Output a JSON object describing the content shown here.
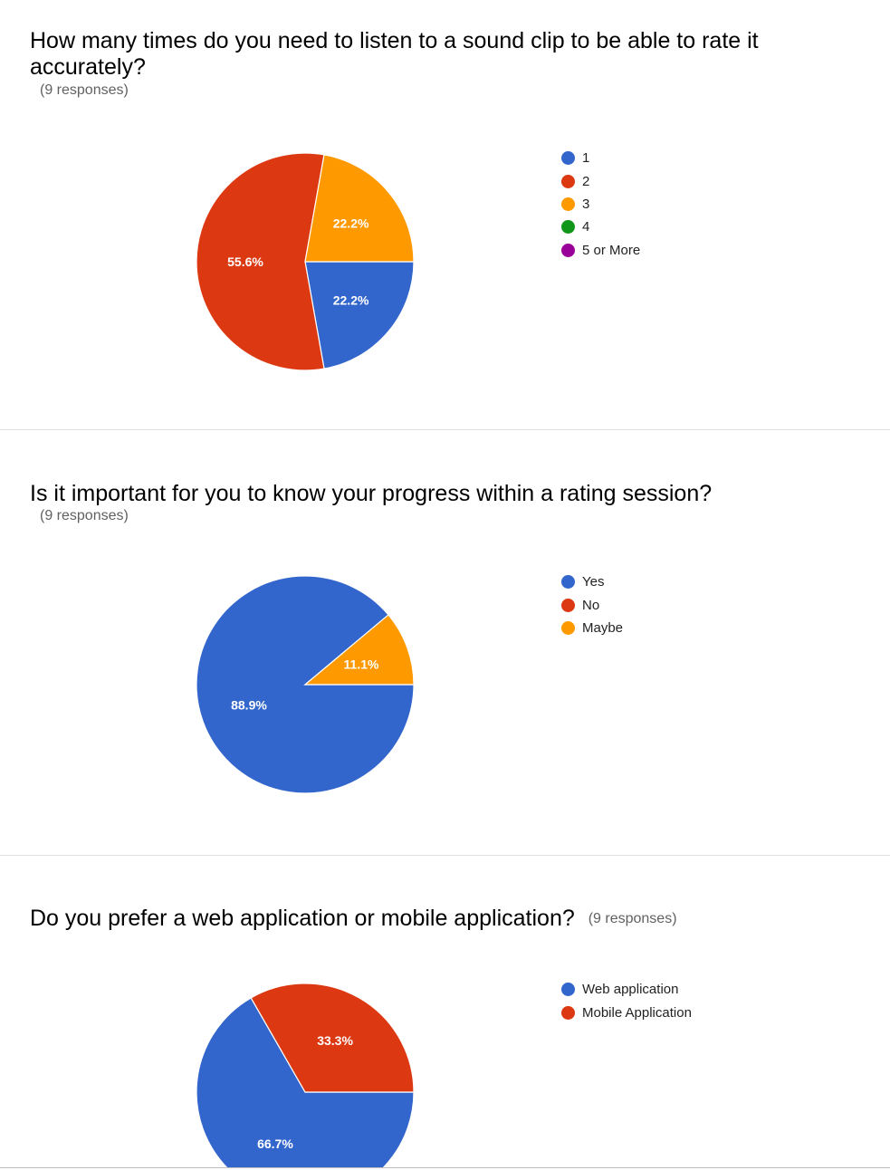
{
  "chart_data": [
    {
      "type": "pie",
      "title": "How many times do you need to listen to a sound clip to be able to rate it accurately?",
      "subtitle": "(9 responses)",
      "legend_position": "right",
      "categories": [
        "1",
        "2",
        "3",
        "4",
        "5 or More"
      ],
      "values": [
        22.2,
        55.6,
        22.2,
        0,
        0
      ],
      "labels": [
        "22.2%",
        "55.6%",
        "22.2%",
        "",
        ""
      ],
      "colors": [
        "#3366cc",
        "#dc3912",
        "#ff9900",
        "#109618",
        "#990099"
      ]
    },
    {
      "type": "pie",
      "title": "Is it important for you to know your progress within a rating session?",
      "subtitle": "(9 responses)",
      "legend_position": "right",
      "categories": [
        "Yes",
        "No",
        "Maybe"
      ],
      "values": [
        88.9,
        0,
        11.1
      ],
      "labels": [
        "88.9%",
        "",
        "11.1%"
      ],
      "colors": [
        "#3366cc",
        "#dc3912",
        "#ff9900"
      ]
    },
    {
      "type": "pie",
      "title": "Do you prefer a web application or mobile application?",
      "subtitle": "(9 responses)",
      "legend_position": "right",
      "categories": [
        "Web application",
        "Mobile Application"
      ],
      "values": [
        66.7,
        33.3
      ],
      "labels": [
        "66.7%",
        "33.3%"
      ],
      "colors": [
        "#3366cc",
        "#dc3912"
      ]
    }
  ]
}
